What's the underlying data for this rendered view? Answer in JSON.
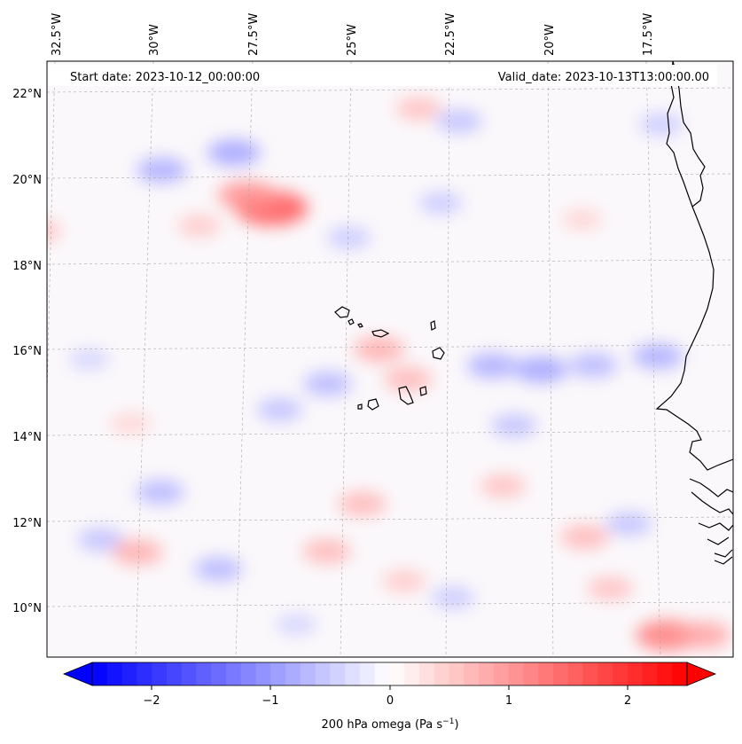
{
  "map": {
    "title_left": "Start date: 2023-10-12_00:00:00",
    "title_right": "Valid_date: 2023-10-13T13:00:00.00",
    "lon_labels": [
      "32.5°W",
      "30°W",
      "27.5°W",
      "25°W",
      "22.5°W",
      "20°W",
      "17.5°W"
    ],
    "lat_labels": [
      "22°N",
      "20°N",
      "18°N",
      "16°N",
      "14°N",
      "12°N",
      "10°N"
    ]
  },
  "colorbar": {
    "label": "200 hPa omega (Pa s",
    "label_sup": "−1",
    "label_end": ")",
    "ticks": [
      "−2",
      "−1",
      "0",
      "1",
      "2"
    ],
    "min": -2.75,
    "max": 2.75,
    "levels": 40,
    "colors": {
      "low": "#0000ff",
      "mid": "#ffffff",
      "high": "#ff0000"
    }
  },
  "features": {
    "blobs": [
      {
        "v": 1.8,
        "lon": -26.9,
        "lat": 19.3
      },
      {
        "v": 1.2,
        "lon": -27.5,
        "lat": 19.6
      },
      {
        "v": -1.0,
        "lon": -27.8,
        "lat": 20.6
      },
      {
        "v": -0.9,
        "lon": -29.6,
        "lat": 20.2
      },
      {
        "v": 0.7,
        "lon": -23.2,
        "lat": 21.6
      },
      {
        "v": -0.7,
        "lon": -22.2,
        "lat": 21.3
      },
      {
        "v": -0.9,
        "lon": -21.5,
        "lat": 15.6
      },
      {
        "v": -1.0,
        "lon": -20.3,
        "lat": 15.5
      },
      {
        "v": -0.8,
        "lon": -19.0,
        "lat": 15.6
      },
      {
        "v": -0.9,
        "lon": -17.4,
        "lat": 15.8
      },
      {
        "v": 0.9,
        "lon": -24.3,
        "lat": 16.0
      },
      {
        "v": 0.8,
        "lon": -23.6,
        "lat": 15.3
      },
      {
        "v": -0.8,
        "lon": -25.6,
        "lat": 15.2
      },
      {
        "v": -0.7,
        "lon": -26.8,
        "lat": 14.6
      },
      {
        "v": -0.8,
        "lon": -29.8,
        "lat": 12.7
      },
      {
        "v": -0.7,
        "lon": -31.3,
        "lat": 11.6
      },
      {
        "v": 0.9,
        "lon": -30.4,
        "lat": 11.3
      },
      {
        "v": 0.8,
        "lon": -24.8,
        "lat": 12.4
      },
      {
        "v": 0.8,
        "lon": -25.7,
        "lat": 11.3
      },
      {
        "v": -0.8,
        "lon": -28.4,
        "lat": 10.9
      },
      {
        "v": 0.7,
        "lon": -21.3,
        "lat": 12.8
      },
      {
        "v": -0.7,
        "lon": -21.0,
        "lat": 14.2
      },
      {
        "v": 0.8,
        "lon": -19.3,
        "lat": 11.6
      },
      {
        "v": -0.7,
        "lon": -18.2,
        "lat": 11.9
      },
      {
        "v": 0.7,
        "lon": -18.7,
        "lat": 10.4
      },
      {
        "v": 1.4,
        "lon": -17.3,
        "lat": 9.3
      },
      {
        "v": 1.0,
        "lon": -16.4,
        "lat": 9.3
      },
      {
        "v": 0.7,
        "lon": -32.7,
        "lat": 18.8
      },
      {
        "v": 0.6,
        "lon": -28.7,
        "lat": 18.9
      },
      {
        "v": -0.6,
        "lon": -25.0,
        "lat": 18.6
      },
      {
        "v": -0.6,
        "lon": -22.7,
        "lat": 19.4
      },
      {
        "v": 0.5,
        "lon": -19.2,
        "lat": 19.0
      },
      {
        "v": -0.6,
        "lon": -17.2,
        "lat": 21.2
      },
      {
        "v": -0.5,
        "lon": -31.5,
        "lat": 15.8
      },
      {
        "v": 0.5,
        "lon": -30.5,
        "lat": 14.3
      },
      {
        "v": 0.6,
        "lon": -23.8,
        "lat": 10.6
      },
      {
        "v": -0.6,
        "lon": -22.6,
        "lat": 10.2
      },
      {
        "v": -0.5,
        "lon": -26.5,
        "lat": 9.6
      }
    ]
  }
}
